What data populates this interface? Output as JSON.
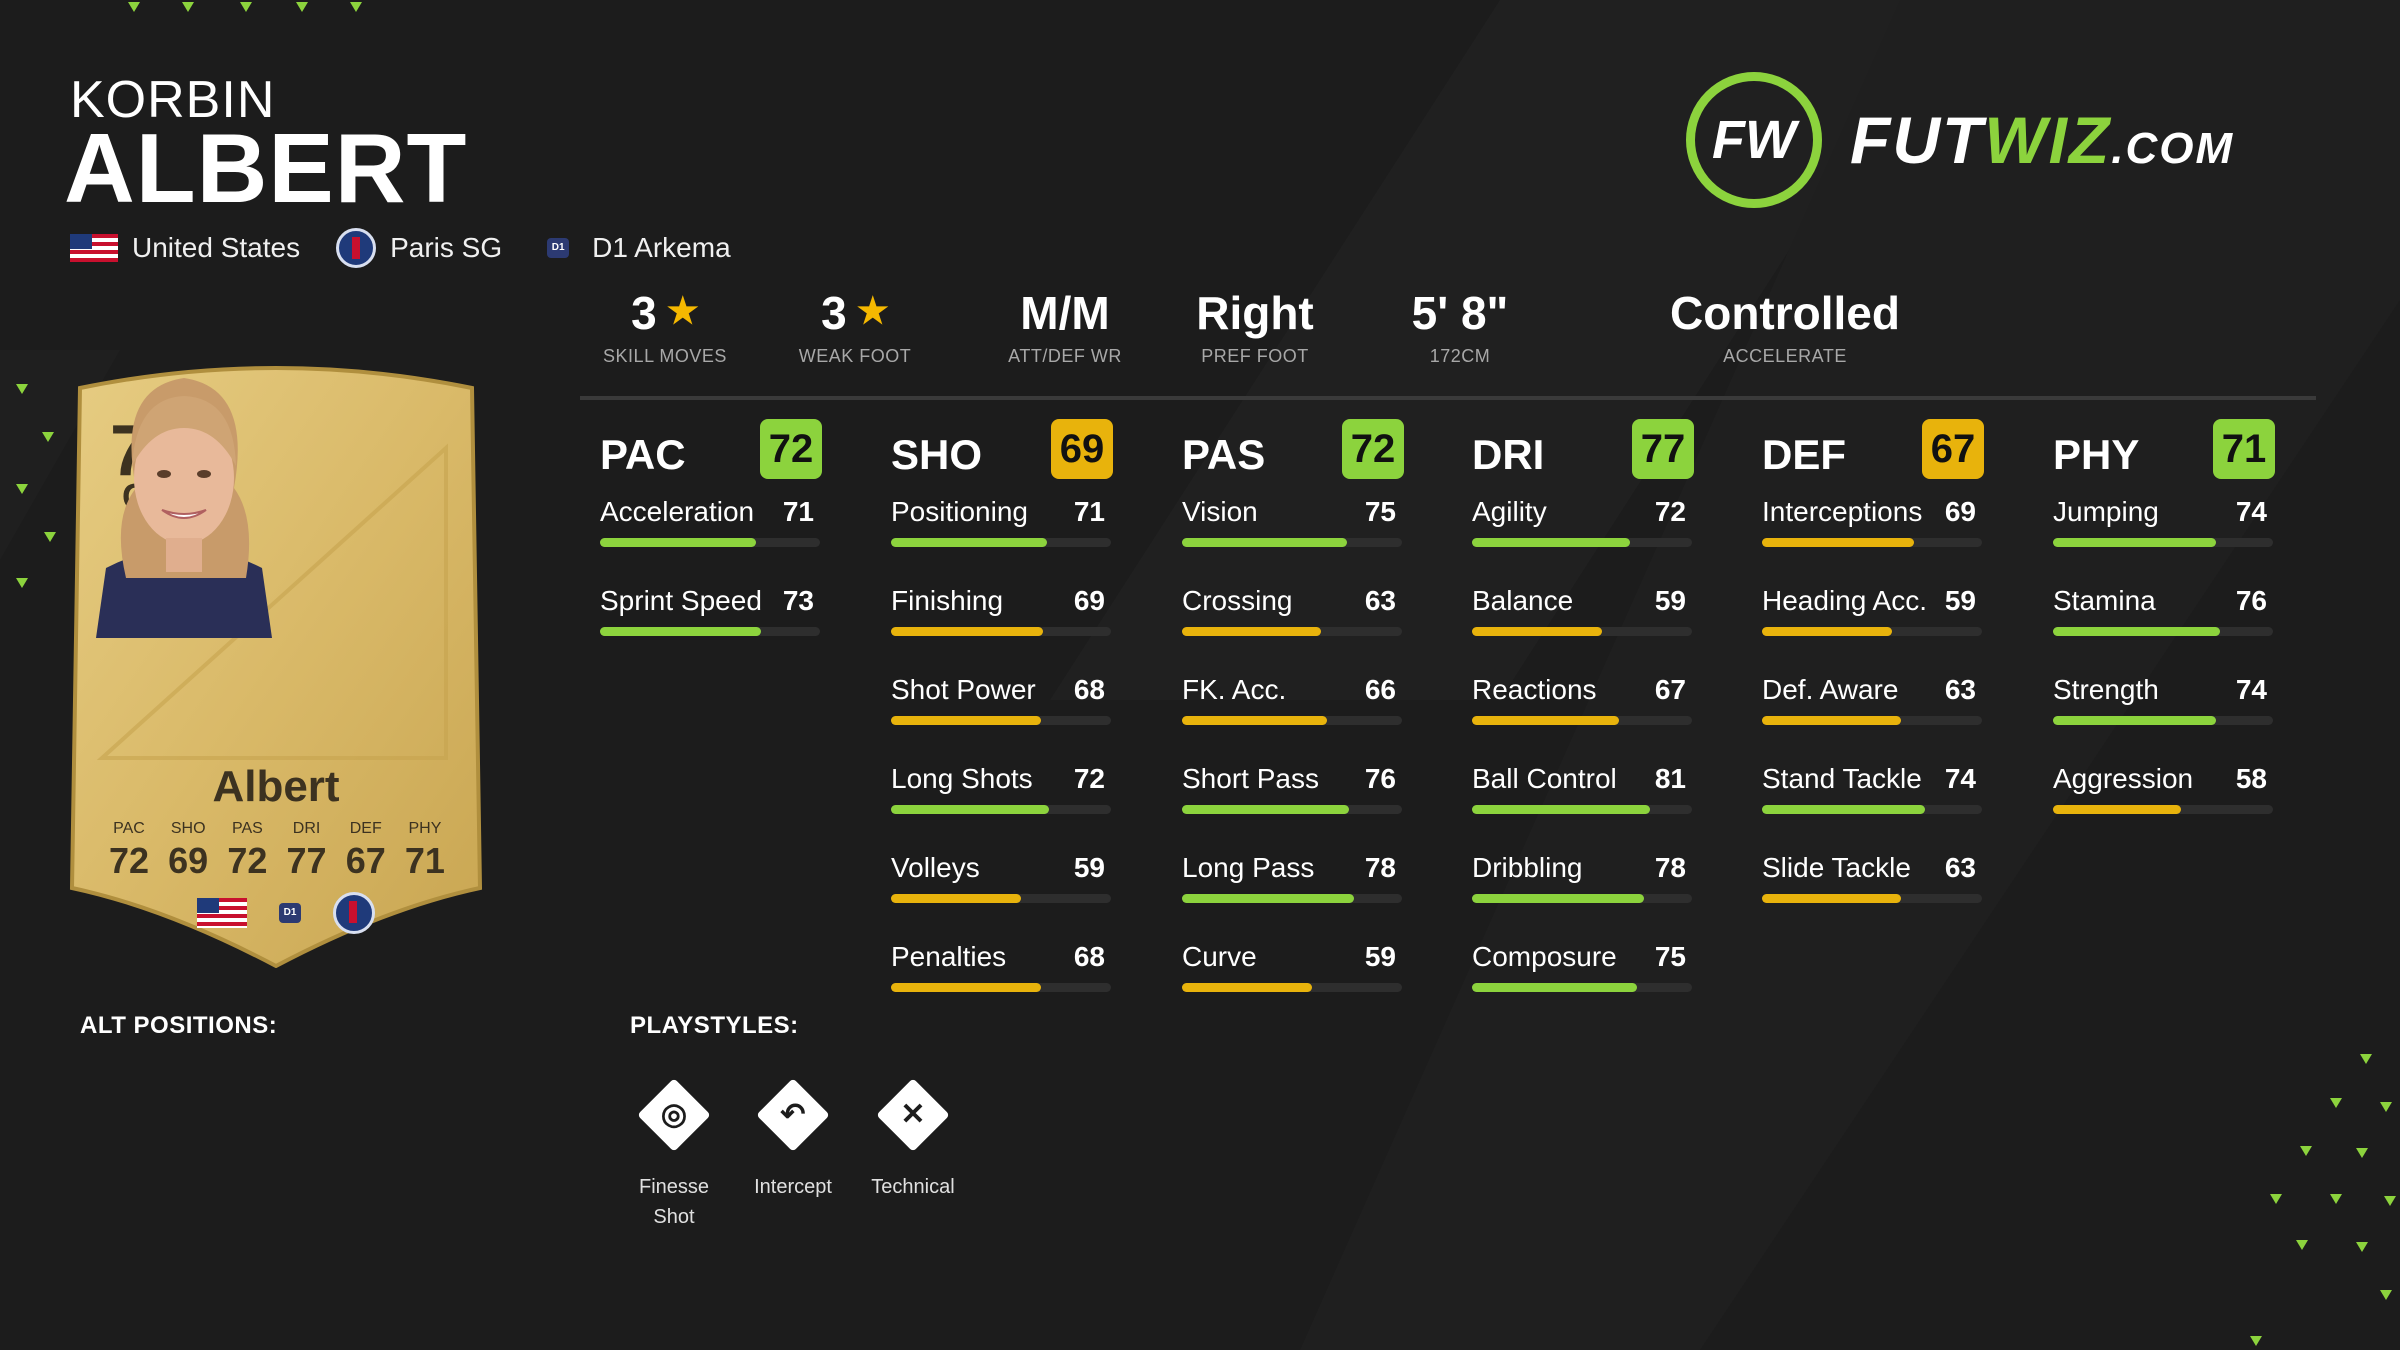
{
  "player": {
    "first_name": "KORBIN",
    "last_name": "ALBERT",
    "nation": "United States",
    "club": "Paris SG",
    "league": "D1 Arkema"
  },
  "brand": {
    "logo_mark": "FW",
    "logo_text_1": "FUT",
    "logo_text_2": "WIZ",
    "logo_text_3": ".COM",
    "accent_color": "#8cd33d"
  },
  "info": [
    {
      "value": "3",
      "label": "SKILL MOVES",
      "star": true
    },
    {
      "value": "3",
      "label": "WEAK FOOT",
      "star": true
    },
    {
      "value": "M/M",
      "label": "ATT/DEF WR",
      "star": false
    },
    {
      "value": "Right",
      "label": "PREF FOOT",
      "star": false
    },
    {
      "value": "5' 8\"",
      "label": "172CM",
      "star": false
    },
    {
      "value": "Controlled",
      "label": "ACCELERATE",
      "star": false
    }
  ],
  "card": {
    "rating": "75",
    "position": "CM",
    "name": "Albert",
    "stats": [
      {
        "label": "PAC",
        "value": "72"
      },
      {
        "label": "SHO",
        "value": "69"
      },
      {
        "label": "PAS",
        "value": "72"
      },
      {
        "label": "DRI",
        "value": "77"
      },
      {
        "label": "DEF",
        "value": "67"
      },
      {
        "label": "PHY",
        "value": "71"
      }
    ]
  },
  "stat_colors": {
    "green": "#8cd33d",
    "yellow": "#e8b30c"
  },
  "stat_groups": [
    {
      "name": "PAC",
      "value": "72",
      "color": "green",
      "attrs": [
        {
          "label": "Acceleration",
          "value": "71"
        },
        {
          "label": "Sprint Speed",
          "value": "73"
        }
      ]
    },
    {
      "name": "SHO",
      "value": "69",
      "color": "yellow",
      "attrs": [
        {
          "label": "Positioning",
          "value": "71"
        },
        {
          "label": "Finishing",
          "value": "69"
        },
        {
          "label": "Shot Power",
          "value": "68"
        },
        {
          "label": "Long Shots",
          "value": "72"
        },
        {
          "label": "Volleys",
          "value": "59"
        },
        {
          "label": "Penalties",
          "value": "68"
        }
      ]
    },
    {
      "name": "PAS",
      "value": "72",
      "color": "green",
      "attrs": [
        {
          "label": "Vision",
          "value": "75"
        },
        {
          "label": "Crossing",
          "value": "63"
        },
        {
          "label": "FK. Acc.",
          "value": "66"
        },
        {
          "label": "Short Pass",
          "value": "76"
        },
        {
          "label": "Long Pass",
          "value": "78"
        },
        {
          "label": "Curve",
          "value": "59"
        }
      ]
    },
    {
      "name": "DRI",
      "value": "77",
      "color": "green",
      "attrs": [
        {
          "label": "Agility",
          "value": "72"
        },
        {
          "label": "Balance",
          "value": "59"
        },
        {
          "label": "Reactions",
          "value": "67"
        },
        {
          "label": "Ball Control",
          "value": "81"
        },
        {
          "label": "Dribbling",
          "value": "78"
        },
        {
          "label": "Composure",
          "value": "75"
        }
      ]
    },
    {
      "name": "DEF",
      "value": "67",
      "color": "yellow",
      "attrs": [
        {
          "label": "Interceptions",
          "value": "69"
        },
        {
          "label": "Heading Acc.",
          "value": "59"
        },
        {
          "label": "Def. Aware",
          "value": "63"
        },
        {
          "label": "Stand Tackle",
          "value": "74"
        },
        {
          "label": "Slide Tackle",
          "value": "63"
        }
      ]
    },
    {
      "name": "PHY",
      "value": "71",
      "color": "green",
      "attrs": [
        {
          "label": "Jumping",
          "value": "74"
        },
        {
          "label": "Stamina",
          "value": "76"
        },
        {
          "label": "Strength",
          "value": "74"
        },
        {
          "label": "Aggression",
          "value": "58"
        }
      ]
    }
  ],
  "sections": {
    "alt_positions": "ALT POSITIONS:",
    "playstyles": "PLAYSTYLES:"
  },
  "playstyles": [
    {
      "line1": "Finesse",
      "line2": "Shot",
      "icon": "finesse-shot-icon"
    },
    {
      "line1": "Intercept",
      "line2": "",
      "icon": "intercept-icon"
    },
    {
      "line1": "Technical",
      "line2": "",
      "icon": "technical-icon"
    }
  ]
}
